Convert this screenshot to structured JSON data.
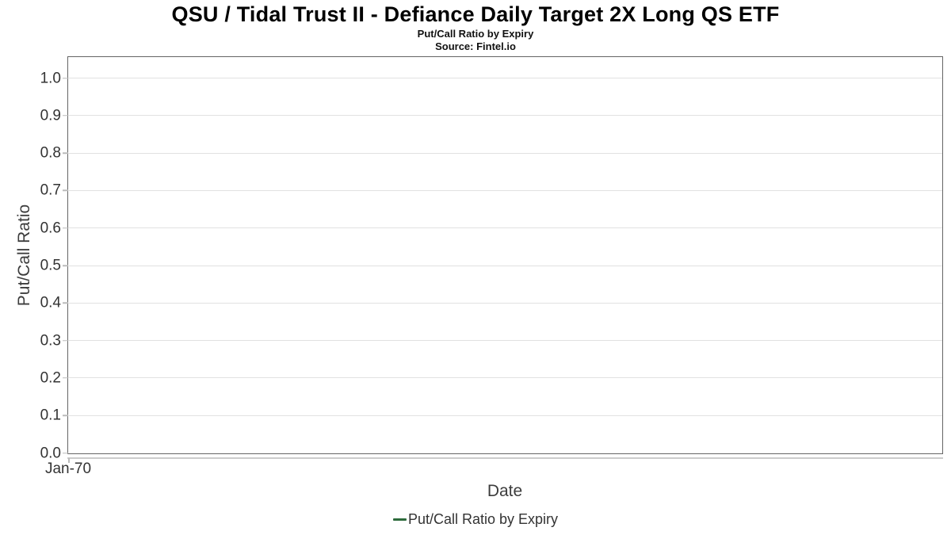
{
  "chart_data": {
    "type": "line",
    "title": "QSU / Tidal Trust II - Defiance Daily Target 2X Long QS ETF",
    "subtitle": "Put/Call Ratio by Expiry",
    "source": "Source: Fintel.io",
    "xlabel": "Date",
    "ylabel": "Put/Call Ratio",
    "xticks": [
      "Jan-70"
    ],
    "yticks": [
      "1.0",
      "0.9",
      "0.8",
      "0.7",
      "0.6",
      "0.5",
      "0.4",
      "0.3",
      "0.2",
      "0.1",
      "0.0"
    ],
    "ylim": [
      0,
      1.055
    ],
    "grid": "horizontal",
    "legend_position": "bottom",
    "series": [
      {
        "name": "Put/Call Ratio by Expiry",
        "color": "#2e6b3c",
        "x": [],
        "values": []
      }
    ]
  },
  "colors": {
    "plot_border": "#656565",
    "gridline": "#e1e1e1",
    "axis_line": "#cccccc",
    "tick": "#bbbbbb",
    "tick_label": "#333333",
    "axis_title": "#3c3c3c",
    "legend_text": "#333333",
    "series_green": "#2e6b3c"
  }
}
